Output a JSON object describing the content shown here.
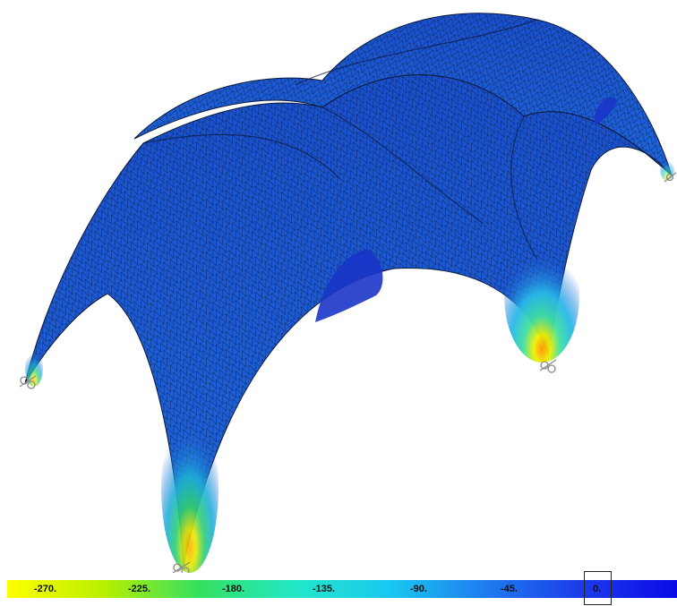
{
  "legend": {
    "labels": [
      "-270.",
      "-225.",
      "-180.",
      "-135.",
      "-90.",
      "-45.",
      "0."
    ],
    "gradient": [
      "#ffff00",
      "#b8f000",
      "#33e060",
      "#22e8c8",
      "#19c8f0",
      "#1f7cf0",
      "#1b3ce8",
      "#0a0ae8"
    ]
  },
  "colors": {
    "shell_base": "#1d5fd6",
    "shell_dark": "#1a3fc0",
    "mesh_line": "#0b1a3a",
    "support": "#9a9a9a"
  }
}
